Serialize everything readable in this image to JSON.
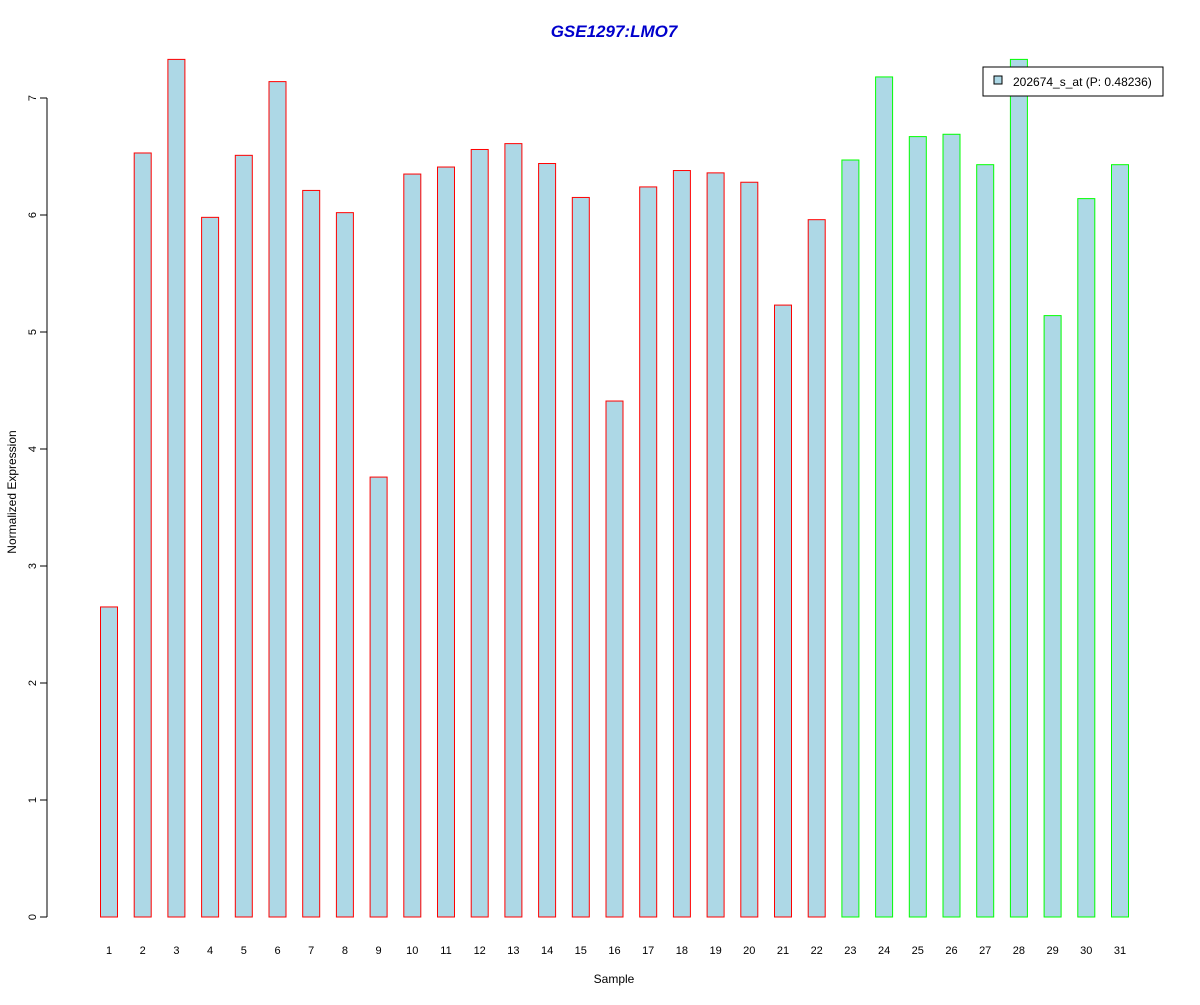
{
  "chart_data": {
    "type": "bar",
    "title": "GSE1297:LMO7",
    "xlabel": "Sample",
    "ylabel": "Normalized Expression",
    "ylim": [
      0,
      7.35
    ],
    "yticks": [
      0,
      1,
      2,
      3,
      4,
      5,
      6,
      7
    ],
    "grid": false,
    "legend_position": "top-right",
    "categories": [
      "1",
      "2",
      "3",
      "4",
      "5",
      "6",
      "7",
      "8",
      "9",
      "10",
      "11",
      "12",
      "13",
      "14",
      "15",
      "16",
      "17",
      "18",
      "19",
      "20",
      "21",
      "22",
      "23",
      "24",
      "25",
      "26",
      "27",
      "28",
      "29",
      "30",
      "31"
    ],
    "series": [
      {
        "name": "202674_s_at (P: 0.48236)",
        "fill": "#add8e6",
        "values": [
          2.65,
          6.53,
          7.33,
          5.98,
          6.51,
          7.14,
          6.21,
          6.02,
          3.76,
          6.35,
          6.41,
          6.56,
          6.61,
          6.44,
          6.15,
          4.41,
          6.24,
          6.38,
          6.36,
          6.28,
          5.23,
          5.96,
          6.47,
          7.18,
          6.67,
          6.69,
          6.43,
          7.33,
          5.14,
          6.14,
          6.43
        ]
      }
    ],
    "groups": [
      {
        "first": 1,
        "last": 22,
        "border": "#ff0000"
      },
      {
        "first": 23,
        "last": 31,
        "border": "#00ff00"
      }
    ],
    "title_color": "#0000cc"
  }
}
